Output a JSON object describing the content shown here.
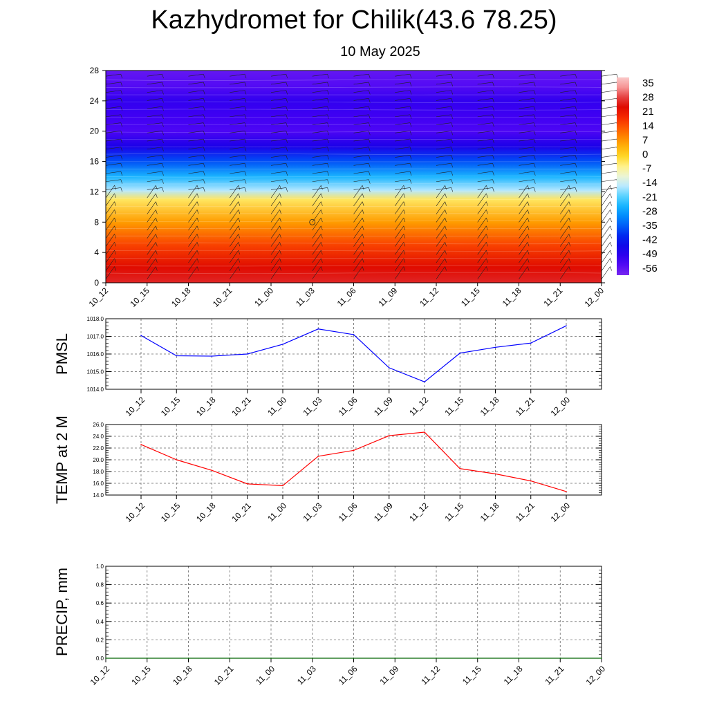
{
  "title": "Kazhydromet for Chilik(43.6 78.25)",
  "subtitle": "10 May 2025",
  "chart_data": [
    {
      "type": "heatmap",
      "x_labels": [
        "10_12",
        "10_15",
        "10_18",
        "10_21",
        "11_00",
        "11_03",
        "11_06",
        "11_09",
        "11_12",
        "11_15",
        "11_18",
        "11_21",
        "12_00"
      ],
      "y_ticks": [
        0,
        4,
        8,
        12,
        16,
        20,
        24,
        28
      ],
      "ylim": [
        0,
        28
      ],
      "colorbar_labels": [
        "35",
        "28",
        "21",
        "14",
        "7",
        "0",
        "-7",
        "-14",
        "-21",
        "-28",
        "-35",
        "-42",
        "-49",
        "-56"
      ],
      "colorbar_range": [
        -63,
        42
      ],
      "value_stops": [
        {
          "y": 0,
          "value": 30
        },
        {
          "y": 2,
          "value": 26
        },
        {
          "y": 5,
          "value": 18
        },
        {
          "y": 8,
          "value": 8
        },
        {
          "y": 11,
          "value": -3
        },
        {
          "y": 12.2,
          "value": -16
        },
        {
          "y": 14,
          "value": -26
        },
        {
          "y": 16,
          "value": -38
        },
        {
          "y": 18,
          "value": -50
        },
        {
          "y": 20,
          "value": -57
        },
        {
          "y": 22,
          "value": -55
        },
        {
          "y": 24,
          "value": -53
        },
        {
          "y": 26,
          "value": -58
        },
        {
          "y": 28,
          "value": -60
        }
      ],
      "wind_barbs": "shown"
    },
    {
      "type": "line",
      "ylabel": "PMSL",
      "x": [
        "10_12",
        "10_15",
        "10_18",
        "10_21",
        "11_00",
        "11_03",
        "11_06",
        "11_09",
        "11_12",
        "11_15",
        "11_18",
        "11_21",
        "12_00"
      ],
      "series": [
        {
          "values": [
            1017.05,
            1015.9,
            1015.88,
            1016.0,
            1016.55,
            1017.42,
            1017.1,
            1015.22,
            1014.42,
            1016.05,
            1016.38,
            1016.62,
            1017.6
          ],
          "color": "#0000ff"
        }
      ],
      "y_ticks": [
        "1014.0",
        "1015.0",
        "1016.0",
        "1017.0",
        "1018.0"
      ],
      "ylim": [
        1014,
        1018
      ],
      "grid": true
    },
    {
      "type": "line",
      "ylabel": "TEMP at 2 M",
      "x": [
        "10_12",
        "10_15",
        "10_18",
        "10_21",
        "11_00",
        "11_03",
        "11_06",
        "11_09",
        "11_12",
        "11_15",
        "11_18",
        "11_21",
        "12_00"
      ],
      "series": [
        {
          "values": [
            22.6,
            20.0,
            18.2,
            15.9,
            15.6,
            20.6,
            21.6,
            24.1,
            24.7,
            18.5,
            17.6,
            16.4,
            14.6
          ],
          "color": "#ff0000"
        }
      ],
      "y_ticks": [
        "14.0",
        "16.0",
        "18.0",
        "20.0",
        "22.0",
        "24.0",
        "26.0"
      ],
      "ylim": [
        14,
        26
      ],
      "grid": true
    },
    {
      "type": "line",
      "ylabel": "PRECIP, mm",
      "x": [
        "10_12",
        "10_15",
        "10_18",
        "10_21",
        "11_00",
        "11_03",
        "11_06",
        "11_09",
        "11_12",
        "11_15",
        "11_18",
        "11_21",
        "12_00"
      ],
      "series": [
        {
          "values": [
            0,
            0,
            0,
            0,
            0,
            0,
            0,
            0,
            0,
            0,
            0,
            0,
            0
          ],
          "color": "#006400"
        }
      ],
      "y_ticks": [
        "0.0",
        "0.2",
        "0.4",
        "0.6",
        "0.8",
        "1.0"
      ],
      "ylim": [
        0,
        1
      ],
      "grid": true
    }
  ]
}
